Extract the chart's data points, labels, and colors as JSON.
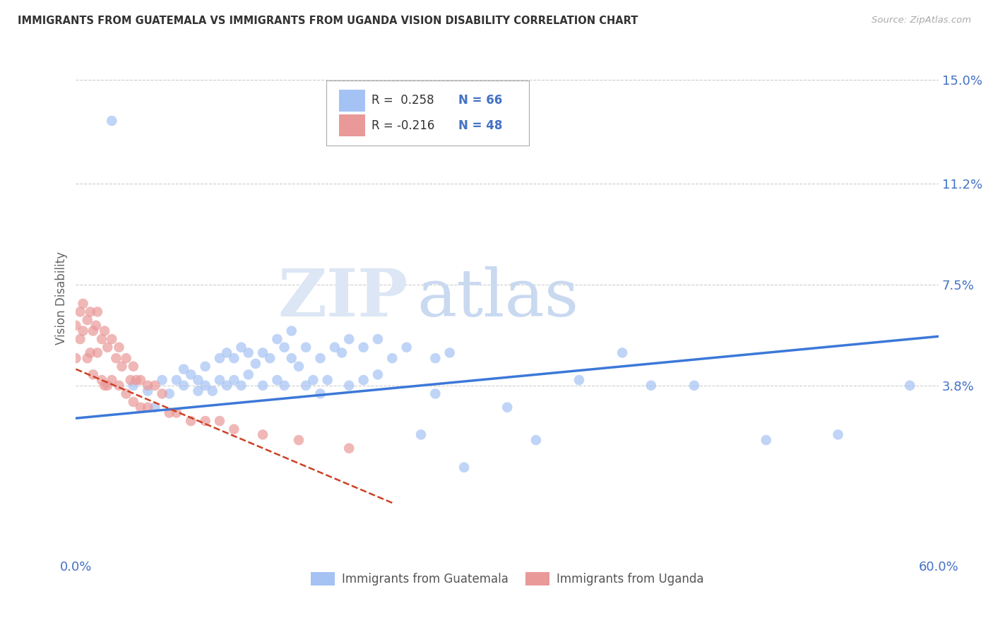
{
  "title": "IMMIGRANTS FROM GUATEMALA VS IMMIGRANTS FROM UGANDA VISION DISABILITY CORRELATION CHART",
  "source": "Source: ZipAtlas.com",
  "ylabel": "Vision Disability",
  "xlim": [
    0.0,
    0.6
  ],
  "ylim": [
    -0.025,
    0.165
  ],
  "yticks": [
    0.038,
    0.075,
    0.112,
    0.15
  ],
  "ytick_labels": [
    "3.8%",
    "7.5%",
    "11.2%",
    "15.0%"
  ],
  "xticks": [
    0.0,
    0.1,
    0.2,
    0.3,
    0.4,
    0.5,
    0.6
  ],
  "xtick_labels": [
    "0.0%",
    "",
    "",
    "",
    "",
    "",
    "60.0%"
  ],
  "legend_r_guatemala": "R =  0.258",
  "legend_n_guatemala": "N = 66",
  "legend_r_uganda": "R = -0.216",
  "legend_n_uganda": "N = 48",
  "color_guatemala": "#a4c2f4",
  "color_uganda": "#ea9999",
  "color_trend_guatemala": "#3c78d8",
  "color_trend_uganda": "#cc4125",
  "color_axis_labels": "#4472c4",
  "color_title": "#333333",
  "watermark_zip": "ZIP",
  "watermark_atlas": "atlas",
  "watermark_color_zip": "#dce6f4",
  "watermark_color_atlas": "#c9d9f0",
  "trend_g_x0": 0.0,
  "trend_g_y0": 0.026,
  "trend_g_x1": 0.6,
  "trend_g_y1": 0.056,
  "trend_u_x0": 0.0,
  "trend_u_y0": 0.044,
  "trend_u_x1": 0.22,
  "trend_u_y1": -0.005,
  "guatemala_scatter_x": [
    0.025,
    0.04,
    0.05,
    0.055,
    0.06,
    0.065,
    0.07,
    0.075,
    0.075,
    0.08,
    0.085,
    0.085,
    0.09,
    0.09,
    0.095,
    0.1,
    0.1,
    0.105,
    0.105,
    0.11,
    0.11,
    0.115,
    0.115,
    0.12,
    0.12,
    0.125,
    0.13,
    0.13,
    0.135,
    0.14,
    0.14,
    0.145,
    0.145,
    0.15,
    0.15,
    0.155,
    0.16,
    0.16,
    0.165,
    0.17,
    0.17,
    0.175,
    0.18,
    0.185,
    0.19,
    0.19,
    0.2,
    0.2,
    0.21,
    0.21,
    0.22,
    0.23,
    0.24,
    0.25,
    0.25,
    0.26,
    0.27,
    0.3,
    0.32,
    0.35,
    0.38,
    0.4,
    0.43,
    0.48,
    0.53,
    0.58
  ],
  "guatemala_scatter_y": [
    0.135,
    0.038,
    0.036,
    0.03,
    0.04,
    0.035,
    0.04,
    0.044,
    0.038,
    0.042,
    0.04,
    0.036,
    0.045,
    0.038,
    0.036,
    0.048,
    0.04,
    0.05,
    0.038,
    0.048,
    0.04,
    0.052,
    0.038,
    0.05,
    0.042,
    0.046,
    0.05,
    0.038,
    0.048,
    0.055,
    0.04,
    0.052,
    0.038,
    0.058,
    0.048,
    0.045,
    0.052,
    0.038,
    0.04,
    0.048,
    0.035,
    0.04,
    0.052,
    0.05,
    0.055,
    0.038,
    0.052,
    0.04,
    0.055,
    0.042,
    0.048,
    0.052,
    0.02,
    0.048,
    0.035,
    0.05,
    0.008,
    0.03,
    0.018,
    0.04,
    0.05,
    0.038,
    0.038,
    0.018,
    0.02,
    0.038
  ],
  "uganda_scatter_x": [
    0.0,
    0.0,
    0.003,
    0.003,
    0.005,
    0.005,
    0.008,
    0.008,
    0.01,
    0.01,
    0.012,
    0.012,
    0.014,
    0.015,
    0.015,
    0.018,
    0.018,
    0.02,
    0.02,
    0.022,
    0.022,
    0.025,
    0.025,
    0.028,
    0.03,
    0.03,
    0.032,
    0.035,
    0.035,
    0.038,
    0.04,
    0.04,
    0.042,
    0.045,
    0.045,
    0.05,
    0.05,
    0.055,
    0.06,
    0.065,
    0.07,
    0.08,
    0.09,
    0.1,
    0.11,
    0.13,
    0.155,
    0.19
  ],
  "uganda_scatter_y": [
    0.06,
    0.048,
    0.065,
    0.055,
    0.068,
    0.058,
    0.062,
    0.048,
    0.065,
    0.05,
    0.058,
    0.042,
    0.06,
    0.065,
    0.05,
    0.055,
    0.04,
    0.058,
    0.038,
    0.052,
    0.038,
    0.055,
    0.04,
    0.048,
    0.052,
    0.038,
    0.045,
    0.048,
    0.035,
    0.04,
    0.045,
    0.032,
    0.04,
    0.04,
    0.03,
    0.038,
    0.03,
    0.038,
    0.035,
    0.028,
    0.028,
    0.025,
    0.025,
    0.025,
    0.022,
    0.02,
    0.018,
    0.015
  ]
}
